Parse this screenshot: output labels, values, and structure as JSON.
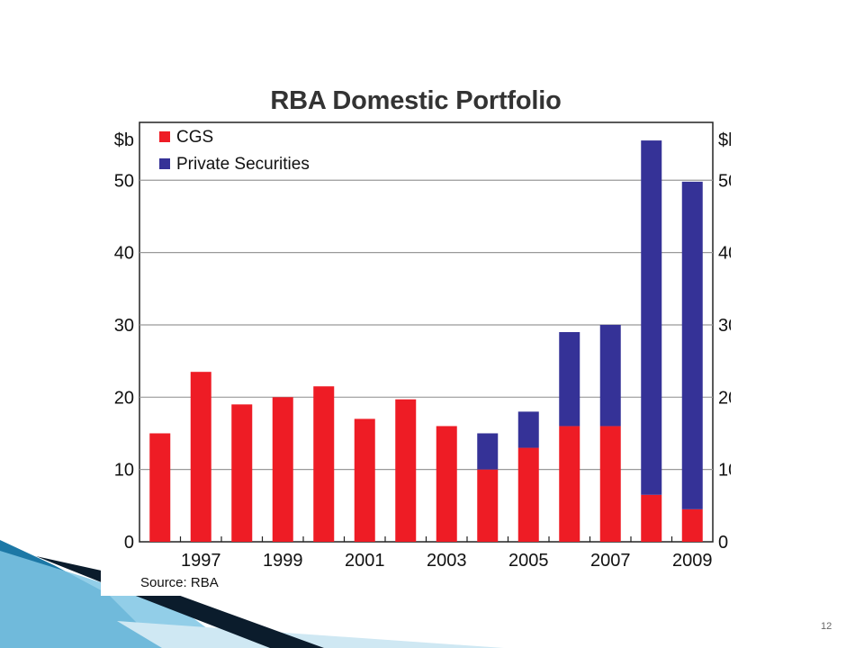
{
  "slide": {
    "page_number": "12"
  },
  "colors": {
    "cgs": "#ee1c25",
    "private": "#353297",
    "grid": "#999999",
    "axis": "#222222",
    "accent_dark": "#0b1c2c",
    "accent_blue": "#1c78a6",
    "accent_light": "#7fc6e4"
  },
  "chart_data": {
    "type": "bar",
    "stacked": true,
    "title": "RBA Domestic Portfolio",
    "ylabel_left": "$b",
    "ylabel_right": "$b",
    "ylim": [
      0,
      58
    ],
    "yticks": [
      0,
      10,
      20,
      30,
      40,
      50
    ],
    "categories": [
      "1996",
      "1997",
      "1998",
      "1999",
      "2000",
      "2001",
      "2002",
      "2003",
      "2004",
      "2005",
      "2006",
      "2007",
      "2008",
      "2009"
    ],
    "xtick_labels": [
      "",
      "1997",
      "",
      "1999",
      "",
      "2001",
      "",
      "2003",
      "",
      "2005",
      "",
      "2007",
      "",
      "2009"
    ],
    "series": [
      {
        "name": "CGS",
        "values": [
          15,
          23.5,
          19,
          20,
          21.5,
          17,
          19.7,
          16,
          10,
          13,
          16,
          16,
          6.5,
          4.5
        ]
      },
      {
        "name": "Private Securities",
        "values": [
          0,
          0,
          0,
          0,
          0,
          0,
          0,
          0,
          5,
          5,
          13,
          14,
          49,
          45.3
        ]
      }
    ],
    "legend_position": "top-left",
    "grid": true,
    "source": "Source: RBA"
  }
}
